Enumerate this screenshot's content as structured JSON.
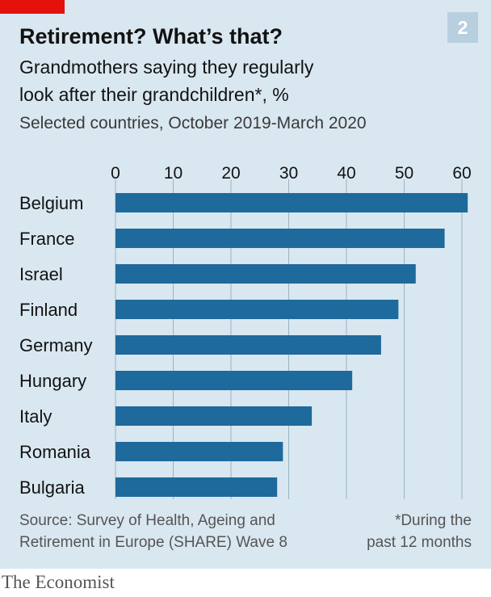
{
  "header": {
    "title": "Retirement? What’s that?",
    "badge": "2",
    "subtitle_line1": "Grandmothers saying they regularly",
    "subtitle_line2": "look after their grandchildren*, %",
    "subtitle_line3": "Selected countries, October 2019-March 2020"
  },
  "footer": {
    "source_line1": "Source: Survey of Health, Ageing and",
    "source_line2": "Retirement in Europe (SHARE) Wave 8",
    "note_line1": "*During the",
    "note_line2": "past 12 months",
    "brand": "The Economist"
  },
  "colors": {
    "bar": "#1f6a9c",
    "background": "#d9e7f0",
    "grid": "#9bb4c4",
    "accent": "#e3120b"
  },
  "chart_data": {
    "type": "bar",
    "orientation": "horizontal",
    "title": "Grandmothers saying they regularly look after their grandchildren*, %",
    "categories": [
      "Belgium",
      "France",
      "Israel",
      "Finland",
      "Germany",
      "Hungary",
      "Italy",
      "Romania",
      "Bulgaria"
    ],
    "values": [
      61,
      57,
      52,
      49,
      46,
      41,
      34,
      29,
      28
    ],
    "xlim": [
      0,
      60
    ],
    "xticks": [
      0,
      10,
      20,
      30,
      40,
      50,
      60
    ],
    "xlabel": "",
    "ylabel": "",
    "grid": true
  }
}
